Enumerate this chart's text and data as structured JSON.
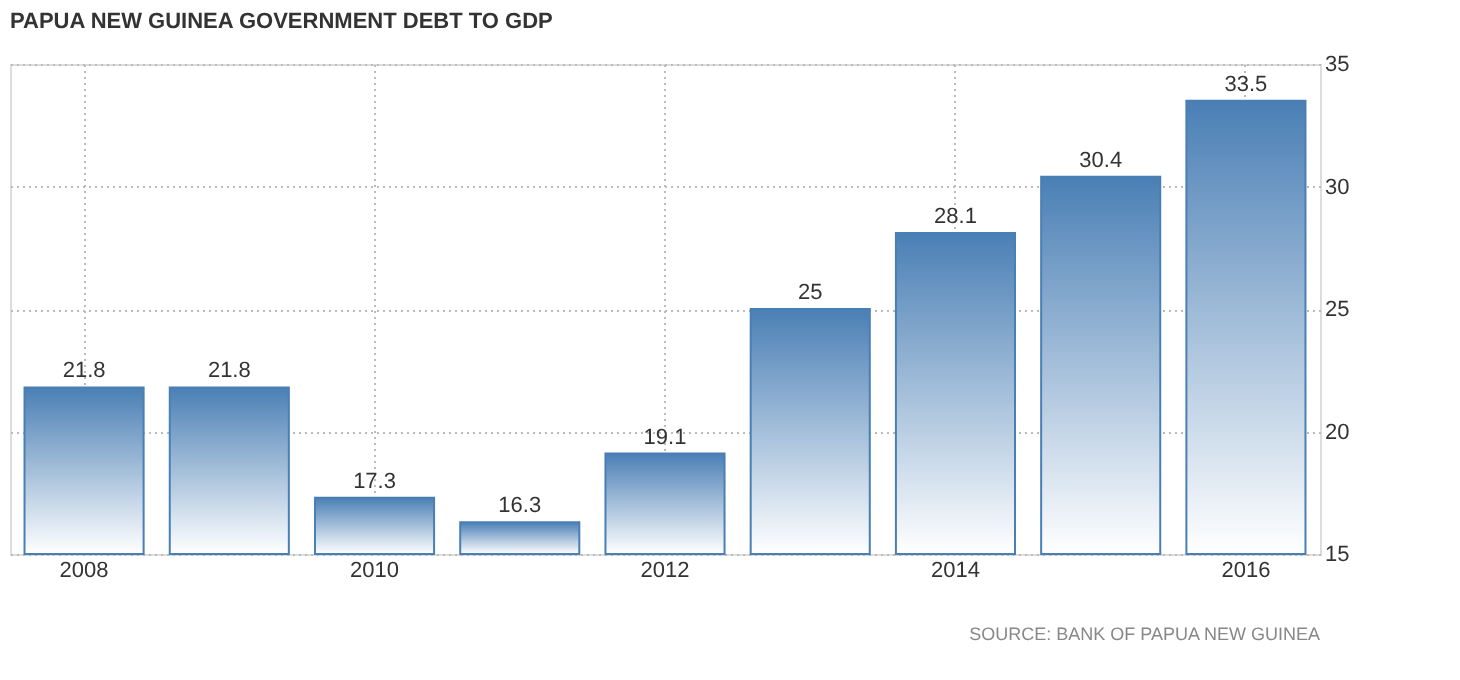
{
  "chart_data": {
    "type": "bar",
    "title": "PAPUA NEW GUINEA GOVERNMENT DEBT TO GDP",
    "categories": [
      "2008",
      null,
      "2010",
      null,
      "2012",
      null,
      "2014",
      null,
      "2016"
    ],
    "values": [
      21.8,
      21.8,
      17.3,
      16.3,
      19.1,
      25,
      28.1,
      30.4,
      33.5
    ],
    "color": "#4a7fb5",
    "ylim": [
      15,
      35
    ],
    "yticks": [
      15,
      20,
      25,
      30,
      35
    ],
    "grid": true,
    "data_labels": true,
    "annotations": [
      "SOURCE: BANK OF PAPUA NEW GUINEA"
    ]
  }
}
